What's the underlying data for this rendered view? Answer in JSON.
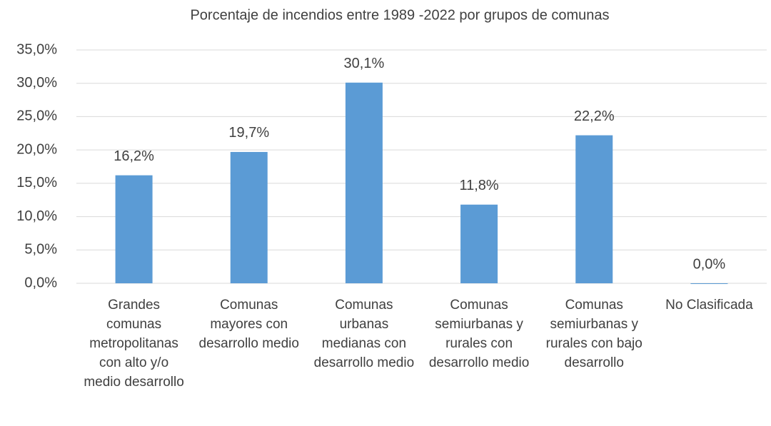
{
  "chart_data": {
    "type": "bar",
    "title": "Porcentaje de incendios entre 1989 -2022 por grupos de comunas",
    "categories": [
      "Grandes comunas metropolitanas con alto y/o medio desarrollo",
      "Comunas mayores con desarrollo medio",
      "Comunas urbanas medianas con desarrollo medio",
      "Comunas semiurbanas y rurales con desarrollo medio",
      "Comunas semiurbanas y rurales con bajo desarrollo",
      "No Clasificada"
    ],
    "values": [
      16.2,
      19.7,
      30.1,
      11.8,
      22.2,
      0.0
    ],
    "value_labels": [
      "16,2%",
      "19,7%",
      "30,1%",
      "11,8%",
      "22,2%",
      "0,0%"
    ],
    "color": "#5b9bd5",
    "ylim": [
      0,
      35
    ],
    "yticks": [
      {
        "value": 0,
        "label": "0,0%"
      },
      {
        "value": 5,
        "label": "5,0%"
      },
      {
        "value": 10,
        "label": "10,0%"
      },
      {
        "value": 15,
        "label": "15,0%"
      },
      {
        "value": 20,
        "label": "20,0%"
      },
      {
        "value": 25,
        "label": "25,0%"
      },
      {
        "value": 30,
        "label": "30,0%"
      },
      {
        "value": 35,
        "label": "35,0%"
      }
    ],
    "grid": true
  }
}
